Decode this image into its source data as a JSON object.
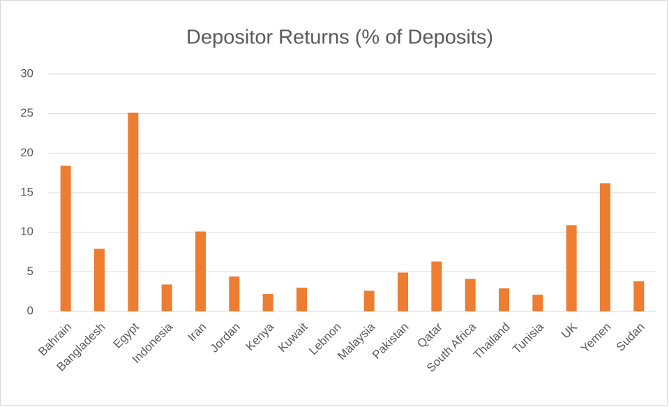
{
  "chart_data": {
    "type": "bar",
    "title": "Depositor Returns (% of Deposits)",
    "categories": [
      "Bahrain",
      "Bangladesh",
      "Egypt",
      "Indonesia",
      "Iran",
      "Jordan",
      "Kenya",
      "Kuwait",
      "Lebnon",
      "Malaysia",
      "Pakistan",
      "Qatar",
      "South Africa",
      "Thailand",
      "Tunisia",
      "UK",
      "Yemen",
      "Sudan"
    ],
    "values": [
      18.4,
      7.9,
      25.1,
      3.4,
      10.1,
      4.4,
      2.2,
      3.0,
      0,
      2.6,
      4.9,
      6.3,
      4.1,
      2.9,
      2.1,
      10.9,
      16.2,
      3.8
    ],
    "color": "#ed7d31",
    "ylim": [
      0,
      30
    ],
    "yticks": [
      0,
      5,
      10,
      15,
      20,
      25,
      30
    ],
    "grid": true
  }
}
